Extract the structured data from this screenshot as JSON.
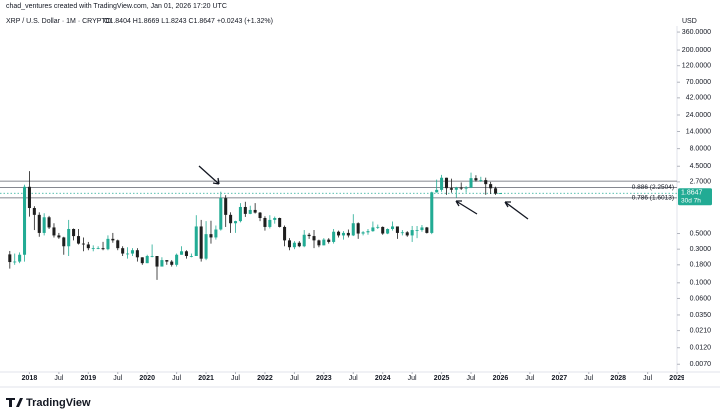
{
  "chart_data": {
    "type": "candlestick",
    "title": "chad_ventures created with TradingView.com, Jan 01, 2026 17:20 UTC",
    "subtitle": "XRP / U.S. Dollar · 1M · CRYPTO",
    "ohlc_text": "O1.8404  H1.8669  L1.8243  C1.8647  +0.0243 (+1.32%)",
    "currency": "USD",
    "brand": "TradingView",
    "log_scale": true,
    "up_color": "#22ab94",
    "down_color": "#1e1e1e",
    "x": [
      "2017-09",
      "2017-10",
      "2017-11",
      "2017-12",
      "2018-01",
      "2018-02",
      "2018-03",
      "2018-04",
      "2018-05",
      "2018-06",
      "2018-07",
      "2018-08",
      "2018-09",
      "2018-10",
      "2018-11",
      "2018-12",
      "2019-01",
      "2019-02",
      "2019-03",
      "2019-04",
      "2019-05",
      "2019-06",
      "2019-07",
      "2019-08",
      "2019-09",
      "2019-10",
      "2019-11",
      "2019-12",
      "2020-01",
      "2020-02",
      "2020-03",
      "2020-04",
      "2020-05",
      "2020-06",
      "2020-07",
      "2020-08",
      "2020-09",
      "2020-10",
      "2020-11",
      "2020-12",
      "2021-01",
      "2021-02",
      "2021-03",
      "2021-04",
      "2021-05",
      "2021-06",
      "2021-07",
      "2021-08",
      "2021-09",
      "2021-10",
      "2021-11",
      "2021-12",
      "2022-01",
      "2022-02",
      "2022-03",
      "2022-04",
      "2022-05",
      "2022-06",
      "2022-07",
      "2022-08",
      "2022-09",
      "2022-10",
      "2022-11",
      "2022-12",
      "2023-01",
      "2023-02",
      "2023-03",
      "2023-04",
      "2023-05",
      "2023-06",
      "2023-07",
      "2023-08",
      "2023-09",
      "2023-10",
      "2023-11",
      "2023-12",
      "2024-01",
      "2024-02",
      "2024-03",
      "2024-04",
      "2024-05",
      "2024-06",
      "2024-07",
      "2024-08",
      "2024-09",
      "2024-10",
      "2024-11",
      "2024-12",
      "2025-01",
      "2025-02",
      "2025-03",
      "2025-04",
      "2025-05",
      "2025-06",
      "2025-07",
      "2025-08",
      "2025-09",
      "2025-10",
      "2025-11",
      "2025-12",
      "2026-01"
    ],
    "open": [
      0.253,
      0.197,
      0.2,
      0.25,
      2.3,
      1.15,
      0.92,
      0.51,
      0.85,
      0.61,
      0.47,
      0.44,
      0.33,
      0.58,
      0.46,
      0.36,
      0.35,
      0.31,
      0.31,
      0.31,
      0.3,
      0.42,
      0.4,
      0.31,
      0.26,
      0.26,
      0.29,
      0.23,
      0.19,
      0.24,
      0.24,
      0.17,
      0.21,
      0.2,
      0.18,
      0.25,
      0.28,
      0.24,
      0.24,
      0.63,
      0.22,
      0.49,
      0.44,
      0.57,
      1.59,
      0.92,
      0.7,
      0.75,
      1.19,
      0.95,
      1.08,
      0.99,
      0.83,
      0.62,
      0.78,
      0.83,
      0.62,
      0.4,
      0.32,
      0.37,
      0.33,
      0.48,
      0.46,
      0.4,
      0.34,
      0.41,
      0.38,
      0.53,
      0.47,
      0.51,
      0.47,
      0.7,
      0.5,
      0.52,
      0.54,
      0.61,
      0.62,
      0.5,
      0.58,
      0.63,
      0.51,
      0.52,
      0.47,
      0.56,
      0.56,
      0.61,
      0.51,
      1.92,
      2.08,
      3.09,
      2.2,
      2.09,
      2.24,
      2.17,
      2.24,
      3.05,
      2.84,
      2.86,
      2.51,
      2.19,
      1.8404
    ],
    "high": [
      0.283,
      0.26,
      0.27,
      2.46,
      3.84,
      1.22,
      1.0,
      0.97,
      0.89,
      0.7,
      0.51,
      0.45,
      0.78,
      0.59,
      0.58,
      0.44,
      0.38,
      0.34,
      0.33,
      0.38,
      0.47,
      0.51,
      0.41,
      0.33,
      0.32,
      0.31,
      0.31,
      0.23,
      0.25,
      0.35,
      0.24,
      0.23,
      0.21,
      0.21,
      0.26,
      0.33,
      0.29,
      0.26,
      0.91,
      0.78,
      0.75,
      0.76,
      0.65,
      1.96,
      1.75,
      1.0,
      0.76,
      1.35,
      1.41,
      1.24,
      1.35,
      1.01,
      0.88,
      0.91,
      0.87,
      0.84,
      0.65,
      0.43,
      0.39,
      0.39,
      0.56,
      0.51,
      0.56,
      0.41,
      0.43,
      0.43,
      0.58,
      0.55,
      0.54,
      0.57,
      0.94,
      0.72,
      0.54,
      0.58,
      0.74,
      0.67,
      0.63,
      0.59,
      0.74,
      0.63,
      0.56,
      0.54,
      0.64,
      0.64,
      0.66,
      0.62,
      1.96,
      2.91,
      3.4,
      3.09,
      3.0,
      2.3,
      2.65,
      2.35,
      3.66,
      3.35,
      3.19,
      3.1,
      2.7,
      2.3,
      1.8669
    ],
    "low": [
      0.159,
      0.18,
      0.19,
      0.2,
      0.87,
      0.56,
      0.45,
      0.47,
      0.58,
      0.44,
      0.42,
      0.25,
      0.24,
      0.4,
      0.35,
      0.28,
      0.29,
      0.28,
      0.3,
      0.29,
      0.29,
      0.37,
      0.29,
      0.24,
      0.22,
      0.24,
      0.2,
      0.18,
      0.19,
      0.23,
      0.11,
      0.17,
      0.18,
      0.17,
      0.17,
      0.25,
      0.22,
      0.23,
      0.24,
      0.2,
      0.21,
      0.36,
      0.41,
      0.55,
      0.62,
      0.51,
      0.51,
      0.72,
      0.86,
      0.94,
      0.96,
      0.75,
      0.55,
      0.59,
      0.69,
      0.61,
      0.33,
      0.29,
      0.3,
      0.32,
      0.32,
      0.42,
      0.31,
      0.32,
      0.34,
      0.36,
      0.36,
      0.44,
      0.41,
      0.44,
      0.46,
      0.42,
      0.47,
      0.48,
      0.53,
      0.58,
      0.48,
      0.49,
      0.55,
      0.42,
      0.47,
      0.45,
      0.38,
      0.43,
      0.53,
      0.5,
      0.49,
      1.9,
      1.96,
      1.77,
      1.9,
      1.61,
      2.07,
      1.9,
      2.2,
      2.72,
      2.7,
      1.77,
      1.82,
      1.77,
      1.8243
    ],
    "close": [
      0.197,
      0.2,
      0.25,
      2.3,
      1.15,
      0.92,
      0.51,
      0.85,
      0.61,
      0.47,
      0.44,
      0.33,
      0.58,
      0.46,
      0.36,
      0.35,
      0.31,
      0.31,
      0.31,
      0.3,
      0.42,
      0.4,
      0.31,
      0.26,
      0.26,
      0.29,
      0.23,
      0.19,
      0.24,
      0.24,
      0.17,
      0.21,
      0.2,
      0.18,
      0.25,
      0.28,
      0.24,
      0.24,
      0.63,
      0.22,
      0.49,
      0.44,
      0.57,
      1.59,
      0.92,
      0.7,
      0.75,
      1.19,
      0.95,
      1.08,
      0.99,
      0.83,
      0.62,
      0.78,
      0.83,
      0.62,
      0.4,
      0.32,
      0.37,
      0.33,
      0.48,
      0.46,
      0.4,
      0.34,
      0.41,
      0.38,
      0.53,
      0.47,
      0.51,
      0.47,
      0.7,
      0.5,
      0.52,
      0.54,
      0.61,
      0.62,
      0.5,
      0.58,
      0.63,
      0.51,
      0.52,
      0.47,
      0.56,
      0.56,
      0.61,
      0.51,
      1.92,
      2.08,
      3.09,
      2.2,
      2.09,
      2.24,
      2.17,
      2.24,
      3.05,
      2.84,
      2.86,
      2.51,
      2.19,
      1.84,
      1.8647
    ],
    "xlim": [
      "2017-07",
      "2029-02"
    ],
    "xticks": [
      {
        "value": "2018-01",
        "label": "2018"
      },
      {
        "value": "2018-07",
        "label": "Jul"
      },
      {
        "value": "2019-01",
        "label": "2019"
      },
      {
        "value": "2019-07",
        "label": "Jul"
      },
      {
        "value": "2020-01",
        "label": "2020"
      },
      {
        "value": "2020-07",
        "label": "Jul"
      },
      {
        "value": "2021-01",
        "label": "2021"
      },
      {
        "value": "2021-07",
        "label": "Jul"
      },
      {
        "value": "2022-01",
        "label": "2022"
      },
      {
        "value": "2022-07",
        "label": "Jul"
      },
      {
        "value": "2023-01",
        "label": "2023"
      },
      {
        "value": "2023-07",
        "label": "Jul"
      },
      {
        "value": "2024-01",
        "label": "2024"
      },
      {
        "value": "2024-07",
        "label": "Jul"
      },
      {
        "value": "2025-01",
        "label": "2025"
      },
      {
        "value": "2025-07",
        "label": "Jul"
      },
      {
        "value": "2026-01",
        "label": "2026"
      },
      {
        "value": "2026-07",
        "label": "Jul"
      },
      {
        "value": "2027-01",
        "label": "2027"
      },
      {
        "value": "2027-07",
        "label": "Jul"
      },
      {
        "value": "2028-01",
        "label": "2028"
      },
      {
        "value": "2028-07",
        "label": "Jul"
      },
      {
        "value": "2029-01",
        "label": "2029"
      }
    ],
    "ylim": [
      0.0058,
      500
    ],
    "yticks": [
      {
        "value": 360,
        "label": "360.0000"
      },
      {
        "value": 200,
        "label": "200.0000"
      },
      {
        "value": 120,
        "label": "120.0000"
      },
      {
        "value": 70,
        "label": "70.0000"
      },
      {
        "value": 42,
        "label": "42.0000"
      },
      {
        "value": 24,
        "label": "24.0000"
      },
      {
        "value": 14,
        "label": "14.0000"
      },
      {
        "value": 8,
        "label": "8.0000"
      },
      {
        "value": 4.5,
        "label": "4.5000"
      },
      {
        "value": 2.7,
        "label": "2.7000"
      },
      {
        "value": 0.5,
        "label": "0.5000"
      },
      {
        "value": 0.3,
        "label": "0.3000"
      },
      {
        "value": 0.18,
        "label": "0.1800"
      },
      {
        "value": 0.1,
        "label": "0.1000"
      },
      {
        "value": 0.06,
        "label": "0.0600"
      },
      {
        "value": 0.035,
        "label": "0.0350"
      },
      {
        "value": 0.021,
        "label": "0.0210"
      },
      {
        "value": 0.012,
        "label": "0.0120"
      },
      {
        "value": 0.007,
        "label": "0.0070"
      }
    ],
    "levels": [
      {
        "value": 2.77
      },
      {
        "value": 2.2504,
        "label": "0.886 (2.2504)"
      },
      {
        "value": 1.6013,
        "label": "0.786 (1.6013)"
      }
    ],
    "last_price": 1.8647,
    "countdown": "30d 7h"
  }
}
